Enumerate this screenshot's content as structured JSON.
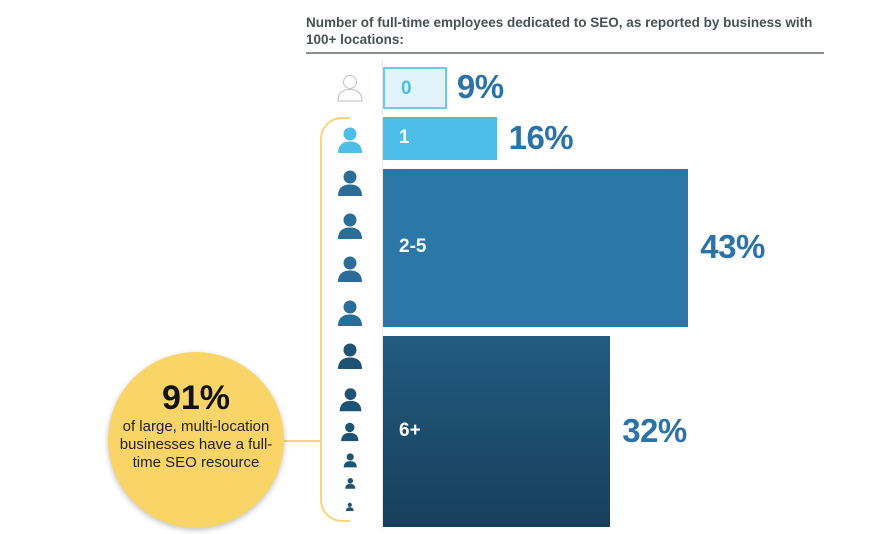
{
  "chart_data": {
    "type": "bar",
    "orientation": "horizontal",
    "title": "Number of full-time employees dedicated to SEO, as reported by business with 100+ locations:",
    "categories": [
      "0",
      "1",
      "2-5",
      "6+"
    ],
    "values": [
      9,
      16,
      43,
      32
    ],
    "value_labels": [
      "9%",
      "16%",
      "43%",
      "32%"
    ],
    "colors": [
      "#e2f3fb",
      "#4dbde9",
      "#2b77a8",
      "#1d5172"
    ],
    "unit": "%",
    "grid": false
  },
  "callout": {
    "value": "91%",
    "text": "of large, multi-location businesses have a full-time SEO resource",
    "color": "#f9d466"
  },
  "icons": [
    "person-outline-icon",
    "person-icon"
  ]
}
